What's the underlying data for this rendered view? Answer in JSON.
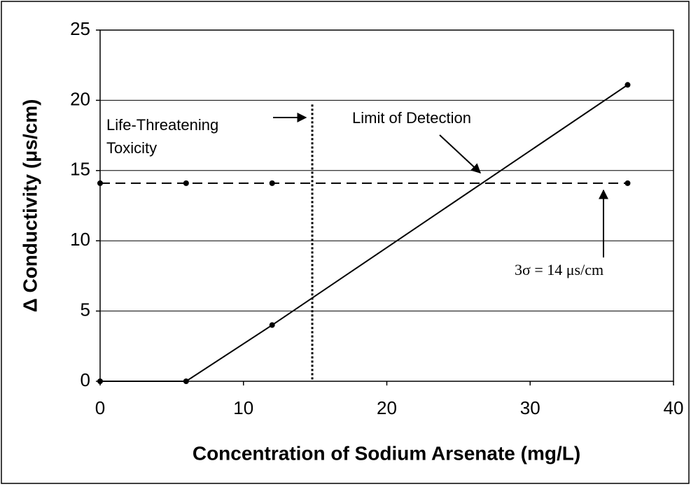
{
  "chart_data": {
    "type": "line",
    "xlabel": "Concentration of Sodium Arsenate (mg/L)",
    "ylabel": "Δ Conductivity (μs/cm)",
    "series": [
      {
        "x": [
          0,
          6,
          12,
          36.8
        ],
        "values": [
          0,
          0,
          4,
          21.1
        ],
        "color": "#000000",
        "style": "solid"
      },
      {
        "x": [
          0,
          6,
          12,
          36.8
        ],
        "values": [
          14.1,
          14.1,
          14.1,
          14.1
        ],
        "color": "#000000",
        "style": "dashed"
      }
    ],
    "reference_x": 14.8,
    "annotations": [
      "Life-Threatening",
      "Toxicity",
      "Limit of Detection",
      "3σ = 14 μs/cm"
    ],
    "xlim": [
      0,
      40
    ],
    "xticks": [
      0,
      10,
      20,
      30,
      40
    ],
    "ylim": [
      0,
      25
    ],
    "yticks": [
      0,
      5,
      10,
      15,
      20,
      25
    ],
    "grid": true
  }
}
